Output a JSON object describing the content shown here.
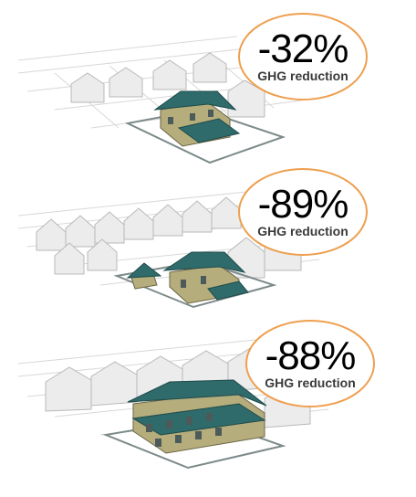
{
  "colors": {
    "badge_outline": "#ee9f4f",
    "roof": "#2f6b6b",
    "wall": "#b6ad7c",
    "ghost": "#d9d9d9"
  },
  "panels": [
    {
      "reduction": "-32%",
      "label": "GHG reduction"
    },
    {
      "reduction": "-89%",
      "label": "GHG reduction"
    },
    {
      "reduction": "-88%",
      "label": "GHG reduction"
    }
  ]
}
